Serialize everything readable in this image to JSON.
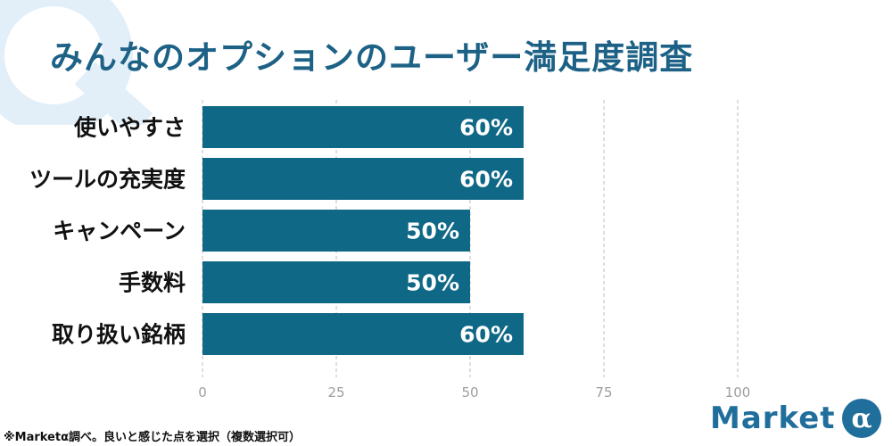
{
  "title": "みんなのオプションのユーザー満足度調査",
  "footnote": "※Marketα調べ。良いと感じた点を選択（複数選択可）",
  "logo": {
    "text": "Market",
    "badge_glyph": "α"
  },
  "colors": {
    "bar": "#0f6886",
    "title": "#1d6286",
    "grid": "#bdbdbd",
    "tick": "#9e9e9e",
    "watermark": "#e3eff8",
    "logo": "#1f6e9c"
  },
  "chart_data": {
    "type": "bar",
    "orientation": "horizontal",
    "categories": [
      "使いやすさ",
      "ツールの充実度",
      "キャンペーン",
      "手数料",
      "取り扱い銘柄"
    ],
    "values": [
      60,
      60,
      50,
      50,
      60
    ],
    "value_labels": [
      "60%",
      "60%",
      "50%",
      "50%",
      "60%"
    ],
    "xlim": [
      0,
      100
    ],
    "xticks": [
      0,
      25,
      50,
      75,
      100
    ],
    "xtick_labels": [
      "0",
      "25",
      "50",
      "75",
      "100"
    ],
    "grid": "vertical-dashed",
    "legend": "none"
  }
}
